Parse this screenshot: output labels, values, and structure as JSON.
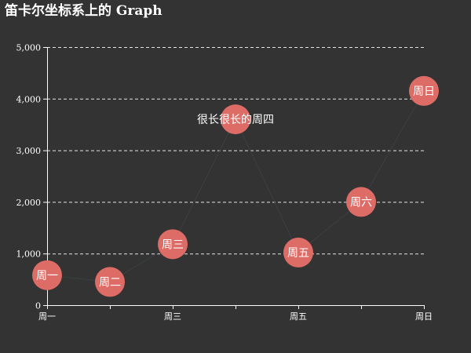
{
  "chart_data": {
    "type": "graph",
    "title": "笛卡尔坐标系上的 Graph",
    "background": "#333333",
    "node_color": "#dd6b66",
    "text_color": "#ffffff",
    "categories": [
      "周一",
      "周二",
      "周三",
      "很长很长的周四",
      "周五",
      "周六",
      "周日"
    ],
    "values": [
      580,
      450,
      1180,
      3600,
      1020,
      2000,
      4150
    ],
    "x_tick_labels": [
      "周一",
      "周三",
      "周五",
      "周日"
    ],
    "y_tick_labels": [
      "0",
      "1,000",
      "2,000",
      "3,000",
      "4,000",
      "5,000"
    ],
    "ylim": [
      0,
      5000
    ],
    "y_ticks": [
      0,
      1000,
      2000,
      3000,
      4000,
      5000
    ],
    "grid": "horizontal-dashed",
    "nodes": [
      {
        "label": "周一",
        "value": 580
      },
      {
        "label": "周二",
        "value": 450
      },
      {
        "label": "周三",
        "value": 1180
      },
      {
        "label": "很长很长的周四",
        "value": 3600
      },
      {
        "label": "周五",
        "value": 1020
      },
      {
        "label": "周六",
        "value": 2000
      },
      {
        "label": "周日",
        "value": 4150
      }
    ],
    "links": [
      [
        0,
        1
      ],
      [
        1,
        2
      ],
      [
        2,
        3
      ],
      [
        3,
        4
      ],
      [
        4,
        5
      ],
      [
        5,
        6
      ]
    ]
  }
}
